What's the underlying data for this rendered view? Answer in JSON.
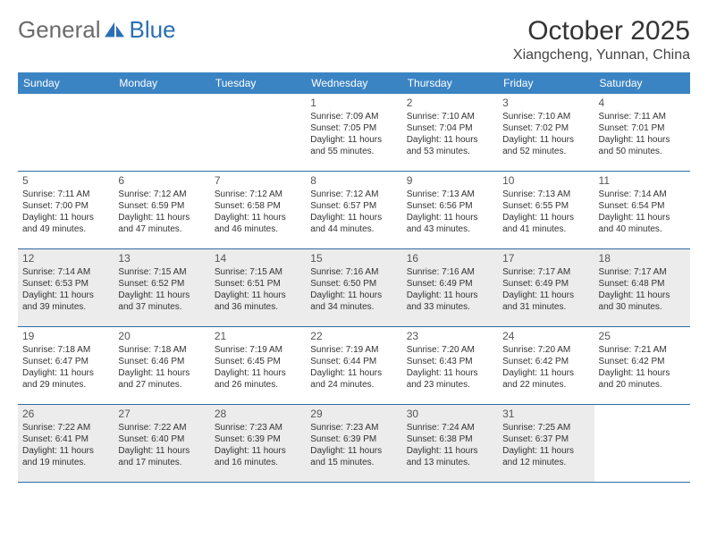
{
  "logo": {
    "general": "General",
    "blue": "Blue"
  },
  "title": "October 2025",
  "location": "Xiangcheng, Yunnan, China",
  "colors": {
    "header_bg": "#3b84c4",
    "header_text": "#ffffff",
    "row_border": "#2f6aa3",
    "shaded_bg": "#ececec",
    "logo_gray": "#6b6b6b",
    "logo_blue": "#2a6fb5"
  },
  "day_names": [
    "Sunday",
    "Monday",
    "Tuesday",
    "Wednesday",
    "Thursday",
    "Friday",
    "Saturday"
  ],
  "shaded_days": [
    12,
    13,
    14,
    15,
    16,
    17,
    18,
    26,
    27,
    28,
    29,
    30,
    31
  ],
  "weeks": [
    [
      {
        "n": ""
      },
      {
        "n": ""
      },
      {
        "n": ""
      },
      {
        "n": "1",
        "sr": "Sunrise: 7:09 AM",
        "ss": "Sunset: 7:05 PM",
        "dl": "Daylight: 11 hours and 55 minutes."
      },
      {
        "n": "2",
        "sr": "Sunrise: 7:10 AM",
        "ss": "Sunset: 7:04 PM",
        "dl": "Daylight: 11 hours and 53 minutes."
      },
      {
        "n": "3",
        "sr": "Sunrise: 7:10 AM",
        "ss": "Sunset: 7:02 PM",
        "dl": "Daylight: 11 hours and 52 minutes."
      },
      {
        "n": "4",
        "sr": "Sunrise: 7:11 AM",
        "ss": "Sunset: 7:01 PM",
        "dl": "Daylight: 11 hours and 50 minutes."
      }
    ],
    [
      {
        "n": "5",
        "sr": "Sunrise: 7:11 AM",
        "ss": "Sunset: 7:00 PM",
        "dl": "Daylight: 11 hours and 49 minutes."
      },
      {
        "n": "6",
        "sr": "Sunrise: 7:12 AM",
        "ss": "Sunset: 6:59 PM",
        "dl": "Daylight: 11 hours and 47 minutes."
      },
      {
        "n": "7",
        "sr": "Sunrise: 7:12 AM",
        "ss": "Sunset: 6:58 PM",
        "dl": "Daylight: 11 hours and 46 minutes."
      },
      {
        "n": "8",
        "sr": "Sunrise: 7:12 AM",
        "ss": "Sunset: 6:57 PM",
        "dl": "Daylight: 11 hours and 44 minutes."
      },
      {
        "n": "9",
        "sr": "Sunrise: 7:13 AM",
        "ss": "Sunset: 6:56 PM",
        "dl": "Daylight: 11 hours and 43 minutes."
      },
      {
        "n": "10",
        "sr": "Sunrise: 7:13 AM",
        "ss": "Sunset: 6:55 PM",
        "dl": "Daylight: 11 hours and 41 minutes."
      },
      {
        "n": "11",
        "sr": "Sunrise: 7:14 AM",
        "ss": "Sunset: 6:54 PM",
        "dl": "Daylight: 11 hours and 40 minutes."
      }
    ],
    [
      {
        "n": "12",
        "sr": "Sunrise: 7:14 AM",
        "ss": "Sunset: 6:53 PM",
        "dl": "Daylight: 11 hours and 39 minutes."
      },
      {
        "n": "13",
        "sr": "Sunrise: 7:15 AM",
        "ss": "Sunset: 6:52 PM",
        "dl": "Daylight: 11 hours and 37 minutes."
      },
      {
        "n": "14",
        "sr": "Sunrise: 7:15 AM",
        "ss": "Sunset: 6:51 PM",
        "dl": "Daylight: 11 hours and 36 minutes."
      },
      {
        "n": "15",
        "sr": "Sunrise: 7:16 AM",
        "ss": "Sunset: 6:50 PM",
        "dl": "Daylight: 11 hours and 34 minutes."
      },
      {
        "n": "16",
        "sr": "Sunrise: 7:16 AM",
        "ss": "Sunset: 6:49 PM",
        "dl": "Daylight: 11 hours and 33 minutes."
      },
      {
        "n": "17",
        "sr": "Sunrise: 7:17 AM",
        "ss": "Sunset: 6:49 PM",
        "dl": "Daylight: 11 hours and 31 minutes."
      },
      {
        "n": "18",
        "sr": "Sunrise: 7:17 AM",
        "ss": "Sunset: 6:48 PM",
        "dl": "Daylight: 11 hours and 30 minutes."
      }
    ],
    [
      {
        "n": "19",
        "sr": "Sunrise: 7:18 AM",
        "ss": "Sunset: 6:47 PM",
        "dl": "Daylight: 11 hours and 29 minutes."
      },
      {
        "n": "20",
        "sr": "Sunrise: 7:18 AM",
        "ss": "Sunset: 6:46 PM",
        "dl": "Daylight: 11 hours and 27 minutes."
      },
      {
        "n": "21",
        "sr": "Sunrise: 7:19 AM",
        "ss": "Sunset: 6:45 PM",
        "dl": "Daylight: 11 hours and 26 minutes."
      },
      {
        "n": "22",
        "sr": "Sunrise: 7:19 AM",
        "ss": "Sunset: 6:44 PM",
        "dl": "Daylight: 11 hours and 24 minutes."
      },
      {
        "n": "23",
        "sr": "Sunrise: 7:20 AM",
        "ss": "Sunset: 6:43 PM",
        "dl": "Daylight: 11 hours and 23 minutes."
      },
      {
        "n": "24",
        "sr": "Sunrise: 7:20 AM",
        "ss": "Sunset: 6:42 PM",
        "dl": "Daylight: 11 hours and 22 minutes."
      },
      {
        "n": "25",
        "sr": "Sunrise: 7:21 AM",
        "ss": "Sunset: 6:42 PM",
        "dl": "Daylight: 11 hours and 20 minutes."
      }
    ],
    [
      {
        "n": "26",
        "sr": "Sunrise: 7:22 AM",
        "ss": "Sunset: 6:41 PM",
        "dl": "Daylight: 11 hours and 19 minutes."
      },
      {
        "n": "27",
        "sr": "Sunrise: 7:22 AM",
        "ss": "Sunset: 6:40 PM",
        "dl": "Daylight: 11 hours and 17 minutes."
      },
      {
        "n": "28",
        "sr": "Sunrise: 7:23 AM",
        "ss": "Sunset: 6:39 PM",
        "dl": "Daylight: 11 hours and 16 minutes."
      },
      {
        "n": "29",
        "sr": "Sunrise: 7:23 AM",
        "ss": "Sunset: 6:39 PM",
        "dl": "Daylight: 11 hours and 15 minutes."
      },
      {
        "n": "30",
        "sr": "Sunrise: 7:24 AM",
        "ss": "Sunset: 6:38 PM",
        "dl": "Daylight: 11 hours and 13 minutes."
      },
      {
        "n": "31",
        "sr": "Sunrise: 7:25 AM",
        "ss": "Sunset: 6:37 PM",
        "dl": "Daylight: 11 hours and 12 minutes."
      },
      {
        "n": ""
      }
    ]
  ]
}
